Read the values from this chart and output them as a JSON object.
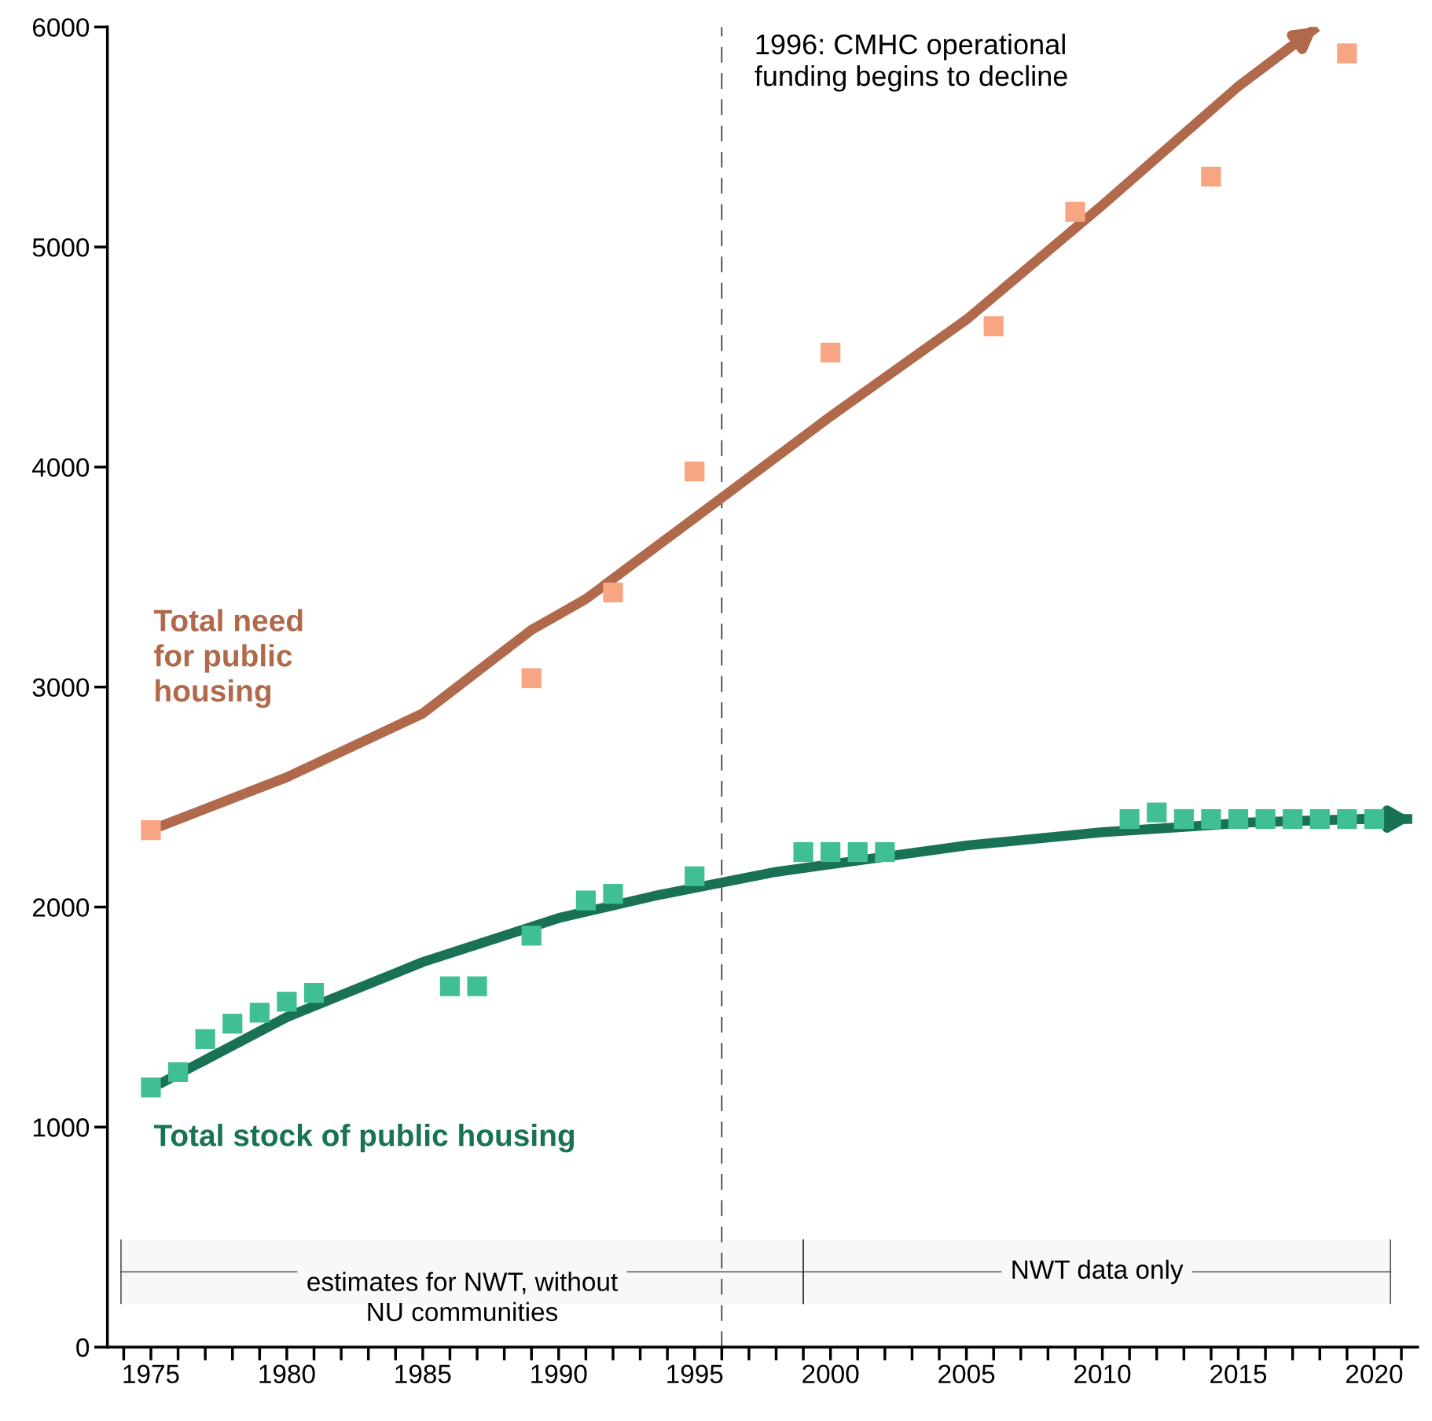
{
  "chart_data": {
    "type": "scatter",
    "series": [
      {
        "type": "line",
        "name": "Total need\nfor public\nhousing",
        "color": "#b0694a",
        "x": [
          1975.3,
          1980,
          1985,
          1989,
          1991,
          1996,
          2000,
          2005,
          2010,
          2015,
          2017.9
        ],
        "values": [
          2365,
          2590,
          2880,
          3260,
          3400,
          3860,
          4230,
          4670,
          5190,
          5730,
          6000
        ]
      },
      {
        "type": "line",
        "name": "Total stock of public housing",
        "color": "#1a7256",
        "x": [
          1975.3,
          1980,
          1985,
          1990,
          1993.5,
          1998,
          2005,
          2010,
          2015.5,
          2019.5,
          2021.4
        ],
        "values": [
          1195,
          1500,
          1750,
          1950,
          2050,
          2160,
          2280,
          2340,
          2385,
          2400,
          2400
        ]
      },
      {
        "type": "scatter",
        "marker": "square",
        "color": "#f7a582",
        "x": [
          1975,
          1989,
          1992,
          1995,
          2000,
          2006,
          2009,
          2014,
          2019
        ],
        "values": [
          2350,
          3040,
          3430,
          3980,
          4520,
          4640,
          5160,
          5320,
          5880
        ]
      },
      {
        "type": "scatter",
        "marker": "square",
        "color": "#40bf94",
        "x": [
          1975,
          1976,
          1977,
          1978,
          1979,
          1980,
          1981,
          1986,
          1987,
          1989,
          1991,
          1992,
          1995,
          1999,
          2000,
          2001,
          2002,
          2011,
          2012,
          2013,
          2014,
          2015,
          2016,
          2017,
          2018,
          2019,
          2020
        ],
        "values": [
          1180,
          1250,
          1400,
          1470,
          1520,
          1570,
          1610,
          1640,
          1640,
          1870,
          2030,
          2060,
          2140,
          2250,
          2250,
          2250,
          2250,
          2400,
          2430,
          2400,
          2400,
          2400,
          2400,
          2400,
          2400,
          2400,
          2400
        ]
      }
    ],
    "xlim": [
      1973.4,
      2021.6
    ],
    "ylim": [
      0,
      6000
    ],
    "xticks": [
      1975,
      1980,
      1985,
      1990,
      1995,
      2000,
      2005,
      2010,
      2015,
      2020
    ],
    "yticks": [
      0,
      1000,
      2000,
      3000,
      4000,
      5000,
      6000
    ],
    "ref_lines": [
      {
        "axis": "x",
        "value": 1996,
        "label": "1996: CMHC operational\nfunding begins to decline",
        "color": "#333333",
        "line_style": "dashed"
      }
    ],
    "bands": [
      {
        "axis": "x",
        "from": 1973.9,
        "to": 1999,
        "label": "estimates for NWT, without\nNU communities"
      },
      {
        "axis": "x",
        "from": 1999,
        "to": 2020.6,
        "label": "NWT data only"
      }
    ],
    "grid": false,
    "legend": false
  }
}
